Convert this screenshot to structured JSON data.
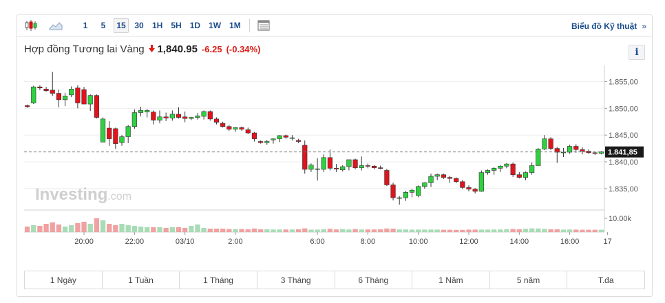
{
  "toolbar": {
    "timeframes": [
      "1",
      "5",
      "15",
      "30",
      "1H",
      "5H",
      "1D",
      "1W",
      "1M"
    ],
    "active_timeframe": "15",
    "technical_link": "Biểu đồ Kỹ thuật",
    "technical_chevron": "»"
  },
  "header": {
    "instrument": "Hợp đồng Tương lai Vàng",
    "direction_arrow": "🡇",
    "price": "1,840.95",
    "change": "-6.25",
    "change_pct": "(-0.34%)",
    "info_label": "i"
  },
  "watermark": {
    "brand": "Investing",
    "suffix": ".com"
  },
  "colors": {
    "up": "#2fd140",
    "down": "#e2131c",
    "vol_up": "#a8dcb6",
    "vol_down": "#f0a1a1",
    "grid": "#ececec",
    "link": "#1b4d8c"
  },
  "chart_data": {
    "type": "candlestick",
    "interval": "15",
    "y_ticks": [
      "1.855,00",
      "1.850,00",
      "1.845,00",
      "1.840,00",
      "1.835,00"
    ],
    "y_tick_values": [
      1855,
      1850,
      1845,
      1840,
      1835
    ],
    "ylim": [
      1831,
      1857.5
    ],
    "current_price_label": "1.841,85",
    "current_price": 1841.85,
    "volume_tick_label": "10.00k",
    "volume_tick_value": 10000,
    "volume_max": 15000,
    "x_tick_labels": [
      "20:00",
      "22:00",
      "03/10",
      "2:00",
      "6:00",
      "8:00",
      "10:00",
      "12:00",
      "14:00",
      "16:00",
      "17"
    ],
    "x_tick_index": [
      9,
      17,
      25,
      33,
      46,
      54,
      62,
      70,
      78,
      86,
      92
    ],
    "candles": [
      [
        1850.5,
        1850.7,
        1850.1,
        1850.3
      ],
      [
        1851.0,
        1854.2,
        1850.8,
        1854.0
      ],
      [
        1854.0,
        1854.3,
        1853.4,
        1853.8
      ],
      [
        1853.6,
        1854.0,
        1853.1,
        1853.3
      ],
      [
        1853.4,
        1856.8,
        1852.3,
        1852.8
      ],
      [
        1852.8,
        1853.5,
        1850.2,
        1851.6
      ],
      [
        1851.6,
        1852.9,
        1850.4,
        1852.3
      ],
      [
        1852.5,
        1854.1,
        1852.1,
        1853.6
      ],
      [
        1853.8,
        1854.3,
        1850.0,
        1851.0
      ],
      [
        1853.5,
        1854.0,
        1850.8,
        1850.8
      ],
      [
        1850.8,
        1852.6,
        1849.5,
        1852.4
      ],
      [
        1852.4,
        1852.6,
        1848.1,
        1848.3
      ],
      [
        1843.7,
        1848.3,
        1843.7,
        1848.0
      ],
      [
        1846.3,
        1847.6,
        1843.0,
        1844.3
      ],
      [
        1846.2,
        1846.4,
        1842.4,
        1843.4
      ],
      [
        1843.6,
        1845.0,
        1843.0,
        1844.7
      ],
      [
        1844.7,
        1846.9,
        1843.5,
        1846.6
      ],
      [
        1846.6,
        1849.8,
        1846.2,
        1849.2
      ],
      [
        1849.2,
        1850.3,
        1848.5,
        1849.6
      ],
      [
        1849.3,
        1849.9,
        1848.3,
        1849.6
      ],
      [
        1849.3,
        1849.6,
        1847.0,
        1847.8
      ],
      [
        1847.8,
        1849.6,
        1847.2,
        1848.4
      ],
      [
        1848.4,
        1849.2,
        1847.6,
        1848.2
      ],
      [
        1848.2,
        1849.6,
        1847.7,
        1848.9
      ],
      [
        1848.9,
        1850.2,
        1848.1,
        1848.3
      ],
      [
        1848.4,
        1849.4,
        1847.4,
        1848.1
      ],
      [
        1848.1,
        1848.4,
        1847.8,
        1848.3
      ],
      [
        1848.3,
        1849.1,
        1847.9,
        1848.6
      ],
      [
        1848.5,
        1849.6,
        1847.9,
        1849.4
      ],
      [
        1849.4,
        1849.6,
        1847.7,
        1848.0
      ],
      [
        1848.0,
        1848.3,
        1847.0,
        1847.4
      ],
      [
        1847.2,
        1847.5,
        1846.4,
        1846.6
      ],
      [
        1846.6,
        1846.9,
        1845.8,
        1846.1
      ],
      [
        1846.1,
        1846.5,
        1845.6,
        1846.4
      ],
      [
        1846.4,
        1846.6,
        1845.8,
        1846.1
      ],
      [
        1846.0,
        1846.4,
        1845.2,
        1845.4
      ],
      [
        1845.4,
        1845.6,
        1843.8,
        1844.3
      ],
      [
        1843.8,
        1844.0,
        1843.4,
        1843.6
      ],
      [
        1843.6,
        1844.1,
        1843.2,
        1843.8
      ],
      [
        1844.1,
        1844.4,
        1843.4,
        1844.3
      ],
      [
        1844.3,
        1845.0,
        1843.7,
        1844.9
      ],
      [
        1844.9,
        1845.1,
        1844.3,
        1844.6
      ],
      [
        1844.5,
        1845.0,
        1844.0,
        1844.5
      ],
      [
        1844.0,
        1844.3,
        1843.5,
        1843.8
      ],
      [
        1843.1,
        1844.0,
        1837.8,
        1838.6
      ],
      [
        1838.6,
        1839.7,
        1838.1,
        1839.4
      ],
      [
        1838.6,
        1840.7,
        1836.5,
        1838.7
      ],
      [
        1838.6,
        1841.4,
        1838.1,
        1840.8
      ],
      [
        1840.8,
        1842.3,
        1838.4,
        1838.8
      ],
      [
        1838.8,
        1839.6,
        1838.1,
        1838.7
      ],
      [
        1838.5,
        1839.4,
        1838.2,
        1839.1
      ],
      [
        1839.1,
        1840.2,
        1838.4,
        1840.4
      ],
      [
        1840.4,
        1840.6,
        1838.6,
        1838.9
      ],
      [
        1838.9,
        1841.0,
        1838.4,
        1839.3
      ],
      [
        1839.3,
        1839.7,
        1838.8,
        1839.2
      ],
      [
        1839.2,
        1839.4,
        1838.6,
        1838.9
      ],
      [
        1838.9,
        1839.3,
        1838.6,
        1838.8
      ],
      [
        1838.4,
        1838.7,
        1835.5,
        1835.7
      ],
      [
        1835.7,
        1836.1,
        1832.8,
        1833.3
      ],
      [
        1833.3,
        1833.6,
        1832.0,
        1833.3
      ],
      [
        1833.3,
        1834.6,
        1832.7,
        1834.3
      ],
      [
        1834.3,
        1835.0,
        1833.4,
        1834.7
      ],
      [
        1833.7,
        1835.6,
        1833.4,
        1835.4
      ],
      [
        1835.4,
        1836.2,
        1835.0,
        1836.1
      ],
      [
        1836.1,
        1837.8,
        1835.3,
        1837.3
      ],
      [
        1837.3,
        1837.8,
        1836.6,
        1837.6
      ],
      [
        1837.6,
        1837.8,
        1836.8,
        1837.1
      ],
      [
        1837.1,
        1837.4,
        1836.1,
        1836.9
      ],
      [
        1836.9,
        1837.1,
        1836.0,
        1836.3
      ],
      [
        1836.3,
        1836.6,
        1834.9,
        1835.2
      ],
      [
        1835.2,
        1835.6,
        1834.5,
        1834.9
      ],
      [
        1834.9,
        1835.1,
        1834.1,
        1834.5
      ],
      [
        1834.5,
        1838.4,
        1834.4,
        1838.0
      ],
      [
        1838.0,
        1838.6,
        1837.6,
        1838.4
      ],
      [
        1838.4,
        1839.0,
        1837.6,
        1838.8
      ],
      [
        1838.8,
        1839.4,
        1838.1,
        1839.2
      ],
      [
        1839.2,
        1839.8,
        1838.8,
        1839.6
      ],
      [
        1839.6,
        1839.9,
        1837.2,
        1837.6
      ],
      [
        1837.6,
        1838.1,
        1836.9,
        1837.1
      ],
      [
        1837.1,
        1838.2,
        1836.6,
        1838.0
      ],
      [
        1838.0,
        1839.9,
        1837.6,
        1839.3
      ],
      [
        1839.3,
        1842.6,
        1839.3,
        1842.4
      ],
      [
        1842.4,
        1845.0,
        1842.2,
        1844.3
      ],
      [
        1844.3,
        1844.6,
        1842.2,
        1842.5
      ],
      [
        1842.5,
        1842.8,
        1839.8,
        1841.8
      ],
      [
        1841.8,
        1842.6,
        1840.9,
        1841.8
      ],
      [
        1841.8,
        1843.2,
        1841.5,
        1842.9
      ],
      [
        1842.9,
        1843.3,
        1841.7,
        1842.3
      ],
      [
        1842.3,
        1842.7,
        1841.4,
        1842.0
      ],
      [
        1842.0,
        1842.3,
        1841.5,
        1841.7
      ],
      [
        1841.7,
        1842.0,
        1841.3,
        1841.6
      ],
      [
        1841.6,
        1842.0,
        1841.4,
        1841.9
      ]
    ],
    "volume": [
      4000,
      5000,
      4500,
      6000,
      7000,
      5500,
      4000,
      5000,
      6500,
      7500,
      6000,
      10000,
      8500,
      6000,
      5000,
      6000,
      5000,
      4500,
      4000,
      3500,
      3500,
      3500,
      3000,
      3500,
      3500,
      3000,
      4500,
      5500,
      3000,
      2500,
      2500,
      2500,
      2200,
      2200,
      2200,
      2000,
      2600,
      2000,
      2000,
      1900,
      1900,
      1900,
      1900,
      2000,
      2700,
      1800,
      1800,
      2000,
      2400,
      1900,
      2200,
      1900,
      2200,
      1900,
      1900,
      1900,
      2000,
      2600,
      2500,
      1900,
      1900,
      1800,
      1800,
      1800,
      1800,
      1800,
      1700,
      1700,
      1600,
      1600,
      1800,
      1800,
      1800,
      1800,
      1900,
      1900,
      2000,
      2200,
      2000,
      2400,
      2700,
      2600,
      2300,
      2000,
      2000,
      1800,
      1900,
      1800,
      1700,
      1700,
      1700,
      1700
    ]
  },
  "ranges": [
    "1 Ngày",
    "1 Tuần",
    "1 Tháng",
    "3 Tháng",
    "6 Tháng",
    "1 Năm",
    "5 năm",
    "T.đa"
  ]
}
